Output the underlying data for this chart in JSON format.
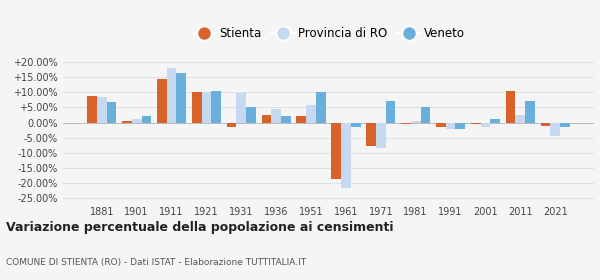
{
  "years": [
    1881,
    1901,
    1911,
    1921,
    1931,
    1936,
    1951,
    1961,
    1971,
    1981,
    1991,
    2001,
    2011,
    2021
  ],
  "stienta": [
    8.8,
    0.7,
    14.5,
    10.0,
    -1.5,
    2.5,
    2.2,
    -18.5,
    -7.8,
    -0.5,
    -1.5,
    -0.5,
    10.5,
    -1.0
  ],
  "provincia_ro": [
    8.3,
    1.2,
    18.0,
    10.2,
    9.7,
    4.5,
    5.8,
    -21.5,
    -8.5,
    0.5,
    -2.0,
    -1.5,
    2.5,
    -4.5
  ],
  "veneto": [
    6.8,
    2.1,
    16.5,
    10.5,
    5.1,
    2.2,
    10.0,
    -1.5,
    7.2,
    5.3,
    -2.0,
    1.1,
    7.2,
    -1.5
  ],
  "color_stienta": "#d9622b",
  "color_provincia": "#c5d9f0",
  "color_veneto": "#6aafdc",
  "title": "Variazione percentuale della popolazione ai censimenti",
  "subtitle": "COMUNE DI STIENTA (RO) - Dati ISTAT - Elaborazione TUTTITALIA.IT",
  "ylim": [
    -27,
    22
  ],
  "yticks": [
    -25.0,
    -20.0,
    -15.0,
    -10.0,
    -5.0,
    0.0,
    5.0,
    10.0,
    15.0,
    20.0
  ],
  "bar_width": 0.28,
  "background_color": "#f5f5f5",
  "grid_color": "#e0e0e0",
  "legend_circle_size": 10
}
